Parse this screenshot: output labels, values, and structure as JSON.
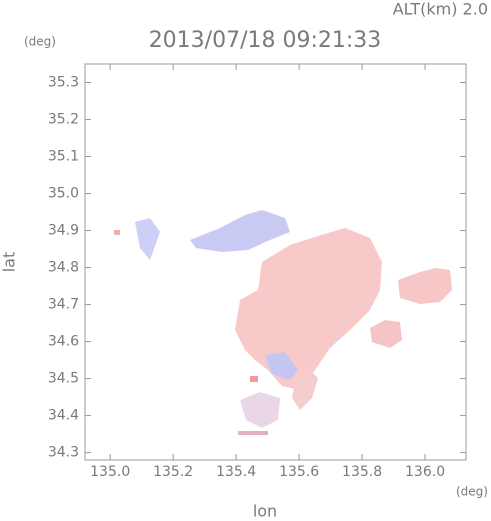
{
  "chart_data": {
    "type": "radar-map",
    "title": "2013/07/18 09:21:33",
    "subtitle": "ALT(km)  2.0",
    "x_label": "lon",
    "y_label": "lat",
    "x_unit": "(deg)",
    "y_unit": "(deg)",
    "xlim": [
      134.92,
      136.13
    ],
    "ylim": [
      34.28,
      35.35
    ],
    "xticks": [
      {
        "value": 135,
        "label": "135.0"
      },
      135.2,
      135.4,
      135.6,
      135.8,
      {
        "value": 136,
        "label": "136.0"
      }
    ],
    "yticks": [
      34.3,
      34.4,
      34.5,
      34.6,
      34.7,
      34.8,
      34.9,
      {
        "value": 35,
        "label": "35.0"
      },
      35.1,
      35.2,
      35.3
    ]
  }
}
